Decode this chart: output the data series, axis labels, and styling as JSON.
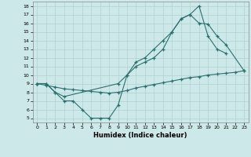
{
  "xlabel": "Humidex (Indice chaleur)",
  "background_color": "#cde8e8",
  "grid_color": "#b0d0d0",
  "line_color": "#2a7070",
  "xlim": [
    -0.5,
    23.5
  ],
  "ylim": [
    4.5,
    18.5
  ],
  "xticks": [
    0,
    1,
    2,
    3,
    4,
    5,
    6,
    7,
    8,
    9,
    10,
    11,
    12,
    13,
    14,
    15,
    16,
    17,
    18,
    19,
    20,
    21,
    22,
    23
  ],
  "yticks": [
    5,
    6,
    7,
    8,
    9,
    10,
    11,
    12,
    13,
    14,
    15,
    16,
    17,
    18
  ],
  "line1_x": [
    0,
    1,
    2,
    3,
    4,
    5,
    6,
    7,
    8,
    9,
    10,
    11,
    12,
    13,
    14,
    15,
    16,
    17,
    18,
    19,
    20,
    21
  ],
  "line1_y": [
    9,
    9,
    8,
    7,
    7,
    6,
    5,
    5,
    5,
    6.5,
    10,
    11.5,
    12,
    13,
    14,
    15,
    16.5,
    17,
    18,
    14.5,
    13,
    12.5
  ],
  "line2_x": [
    0,
    1,
    2,
    3,
    9,
    10,
    11,
    12,
    13,
    14,
    15,
    16,
    17,
    18,
    19,
    20,
    21,
    23
  ],
  "line2_y": [
    9,
    9,
    8,
    7.5,
    9,
    10,
    11,
    11.5,
    12,
    13,
    15,
    16.5,
    17,
    16,
    15.9,
    14.5,
    13.5,
    10.5
  ],
  "line3_x": [
    0,
    1,
    2,
    3,
    4,
    5,
    6,
    7,
    8,
    9,
    10,
    11,
    12,
    13,
    14,
    15,
    16,
    17,
    18,
    19,
    20,
    21,
    22,
    23
  ],
  "line3_y": [
    9,
    8.8,
    8.6,
    8.4,
    8.3,
    8.2,
    8.1,
    8.0,
    7.9,
    8.0,
    8.2,
    8.5,
    8.7,
    8.9,
    9.1,
    9.3,
    9.5,
    9.7,
    9.8,
    10.0,
    10.1,
    10.2,
    10.3,
    10.5
  ]
}
